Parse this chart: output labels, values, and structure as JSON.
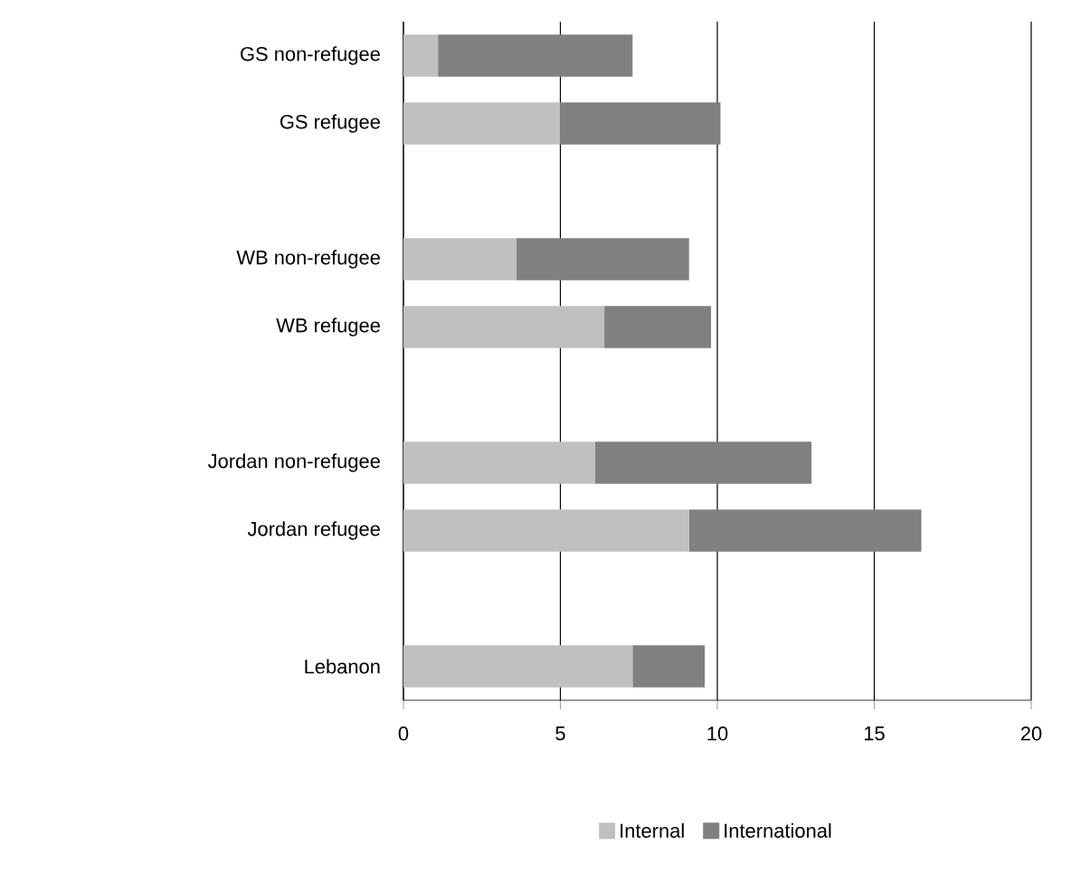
{
  "chart_data": {
    "type": "bar",
    "orientation": "horizontal",
    "stacked": true,
    "categories": [
      "GS non-refugee",
      "GS refugee",
      null,
      "WB non-refugee",
      "WB refugee",
      null,
      "Jordan non-refugee",
      "Jordan refugee",
      null,
      "Lebanon"
    ],
    "series": [
      {
        "name": "Internal",
        "color": "#c0c0c0",
        "values": [
          1.1,
          5.0,
          null,
          3.6,
          6.4,
          null,
          6.1,
          9.1,
          null,
          7.3
        ]
      },
      {
        "name": "International",
        "color": "#808080",
        "values": [
          6.2,
          5.1,
          null,
          5.5,
          3.4,
          null,
          6.9,
          7.4,
          null,
          2.3
        ]
      }
    ],
    "xlim": [
      0,
      20
    ],
    "xticks": [
      0,
      5,
      10,
      15,
      20
    ],
    "grid": "x",
    "legend": "bottom"
  }
}
